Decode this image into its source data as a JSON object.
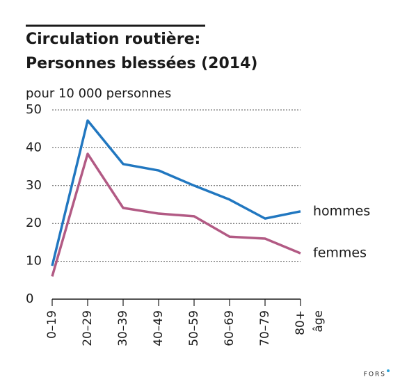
{
  "chart_data": {
    "type": "line",
    "title": [
      "Circulation routière:",
      "Personnes blessées (2014)"
    ],
    "subtitle": "pour 10 000 personnes",
    "x_label": "âge",
    "source": "FORS",
    "categories": [
      "0–19",
      "20–29",
      "30–39",
      "40–49",
      "50–59",
      "60–69",
      "70–79",
      "80+"
    ],
    "series": [
      {
        "name": "hommes",
        "color": "#2177c0",
        "values": [
          8.8,
          47.2,
          35.7,
          34,
          30,
          26.3,
          21.3,
          23.2
        ]
      },
      {
        "name": "femmes",
        "color": "#b25a84",
        "values": [
          6,
          38.4,
          24.1,
          22.6,
          21.9,
          16.5,
          16,
          12.1
        ]
      }
    ],
    "ylim": [
      0,
      50
    ],
    "yticks": [
      0,
      10,
      20,
      30,
      40,
      50
    ],
    "grid": true
  }
}
